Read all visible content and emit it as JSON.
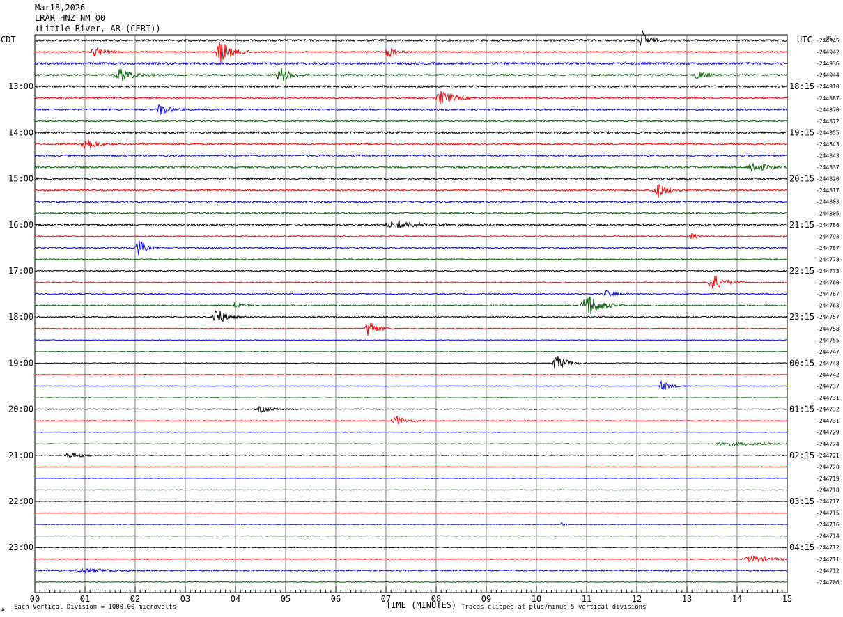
{
  "header": {
    "date": "Mar18,2026",
    "station": "LRAR HNZ NM 00",
    "location": "(Little River, AR (CERI))"
  },
  "left_tz": "CDT",
  "right_tz": "UTC",
  "dc_label": "DC",
  "footer": {
    "scale": "Each Vertical Division = 1000.00 microvolts",
    "clip": "Traces clipped at plus/minus 5 vertical divisions",
    "corner": "A"
  },
  "colors": {
    "trace_cycle": [
      "#000000",
      "#ff0000",
      "#0000ff",
      "#006400"
    ],
    "grid": "#808080"
  },
  "chart_data": {
    "type": "line",
    "title": "LRAR HNZ NM 00",
    "xlabel": "TIME (MINUTES)",
    "xlim": [
      0,
      15
    ],
    "x_ticks": [
      "00",
      "01",
      "02",
      "03",
      "04",
      "05",
      "06",
      "07",
      "08",
      "09",
      "10",
      "11",
      "12",
      "13",
      "14",
      "15"
    ],
    "left_hour_labels": [
      "13:00",
      "14:00",
      "15:00",
      "16:00",
      "17:00",
      "18:00",
      "19:00",
      "20:00",
      "21:00",
      "22:00",
      "23:00"
    ],
    "right_hour_labels": [
      "18:15",
      "19:15",
      "20:15",
      "21:15",
      "22:15",
      "23:15",
      "00:15",
      "01:15",
      "02:15",
      "03:15",
      "04:15"
    ],
    "dc_offsets": [
      "-244945",
      "-244942",
      "-244936",
      "-244944",
      "-244910",
      "-244887",
      "-244870",
      "-244872",
      "-244855",
      "-244843",
      "-244843",
      "-244837",
      "-244820",
      "-244817",
      "-244803",
      "-244805",
      "-244786",
      "-244793",
      "-244787",
      "-244778",
      "-244773",
      "-244760",
      "-244767",
      "-244763",
      "-244757",
      "-244758",
      "-244755",
      "-244747",
      "-244748",
      "-244742",
      "-244737",
      "-244731",
      "-244732",
      "-244731",
      "-244729",
      "-244724",
      "-244721",
      "-244720",
      "-244719",
      "-244718",
      "-244717",
      "-244715",
      "-244716",
      "-244714",
      "-244712",
      "-244711",
      "-244712",
      "-244706"
    ],
    "traces_per_hour": 4,
    "minutes_per_trace": 15,
    "noise_level": [
      1.4,
      0.9,
      1.6,
      1.2,
      1.3,
      1.0,
      1.2,
      0.9,
      1.4,
      1.1,
      1.2,
      1.3,
      1.3,
      1.0,
      1.3,
      1.1,
      1.5,
      0.8,
      1.0,
      0.8,
      0.9,
      0.7,
      0.8,
      0.9,
      0.9,
      0.6,
      0.5,
      0.4,
      0.6,
      0.5,
      0.5,
      0.4,
      0.6,
      0.5,
      0.4,
      0.5,
      0.6,
      0.4,
      0.4,
      0.5,
      0.4,
      0.4,
      0.4,
      0.4,
      0.5,
      0.6,
      0.9,
      0.5
    ],
    "events": [
      {
        "trace": 0,
        "minute": 12.1,
        "amplitude": 7.0,
        "width": 0.25
      },
      {
        "trace": 1,
        "minute": 1.2,
        "amplitude": 3.5,
        "width": 0.4
      },
      {
        "trace": 1,
        "minute": 3.7,
        "amplitude": 8.0,
        "width": 0.45
      },
      {
        "trace": 1,
        "minute": 7.05,
        "amplitude": 4.0,
        "width": 0.3
      },
      {
        "trace": 3,
        "minute": 1.7,
        "amplitude": 5.0,
        "width": 0.45
      },
      {
        "trace": 3,
        "minute": 4.9,
        "amplitude": 5.0,
        "width": 0.4
      },
      {
        "trace": 3,
        "minute": 13.2,
        "amplitude": 3.0,
        "width": 0.3
      },
      {
        "trace": 5,
        "minute": 8.1,
        "amplitude": 5.0,
        "width": 0.5
      },
      {
        "trace": 6,
        "minute": 2.5,
        "amplitude": 4.0,
        "width": 0.35
      },
      {
        "trace": 9,
        "minute": 1.0,
        "amplitude": 5.5,
        "width": 0.35
      },
      {
        "trace": 11,
        "minute": 14.3,
        "amplitude": 4.0,
        "width": 0.45
      },
      {
        "trace": 13,
        "minute": 12.4,
        "amplitude": 6.0,
        "width": 0.35
      },
      {
        "trace": 16,
        "minute": 7.2,
        "amplitude": 2.0,
        "width": 1.2
      },
      {
        "trace": 17,
        "minute": 13.1,
        "amplitude": 2.5,
        "width": 0.2
      },
      {
        "trace": 18,
        "minute": 2.05,
        "amplitude": 7.0,
        "width": 0.25
      },
      {
        "trace": 21,
        "minute": 13.5,
        "amplitude": 6.5,
        "width": 0.4
      },
      {
        "trace": 22,
        "minute": 11.4,
        "amplitude": 2.5,
        "width": 0.3
      },
      {
        "trace": 23,
        "minute": 11.0,
        "amplitude": 9.0,
        "width": 0.5
      },
      {
        "trace": 23,
        "minute": 4.0,
        "amplitude": 2.5,
        "width": 0.3
      },
      {
        "trace": 24,
        "minute": 3.6,
        "amplitude": 7.0,
        "width": 0.35
      },
      {
        "trace": 25,
        "minute": 6.65,
        "amplitude": 6.5,
        "width": 0.3
      },
      {
        "trace": 28,
        "minute": 10.4,
        "amplitude": 6.0,
        "width": 0.4
      },
      {
        "trace": 30,
        "minute": 12.5,
        "amplitude": 3.5,
        "width": 0.35
      },
      {
        "trace": 32,
        "minute": 4.5,
        "amplitude": 2.0,
        "width": 0.5
      },
      {
        "trace": 33,
        "minute": 7.2,
        "amplitude": 3.5,
        "width": 0.4
      },
      {
        "trace": 35,
        "minute": 13.8,
        "amplitude": 1.5,
        "width": 1.2
      },
      {
        "trace": 36,
        "minute": 0.7,
        "amplitude": 2.0,
        "width": 0.5
      },
      {
        "trace": 42,
        "minute": 10.5,
        "amplitude": 2.0,
        "width": 0.1
      },
      {
        "trace": 45,
        "minute": 14.3,
        "amplitude": 2.0,
        "width": 0.9
      },
      {
        "trace": 46,
        "minute": 1.0,
        "amplitude": 1.5,
        "width": 0.9
      }
    ]
  }
}
